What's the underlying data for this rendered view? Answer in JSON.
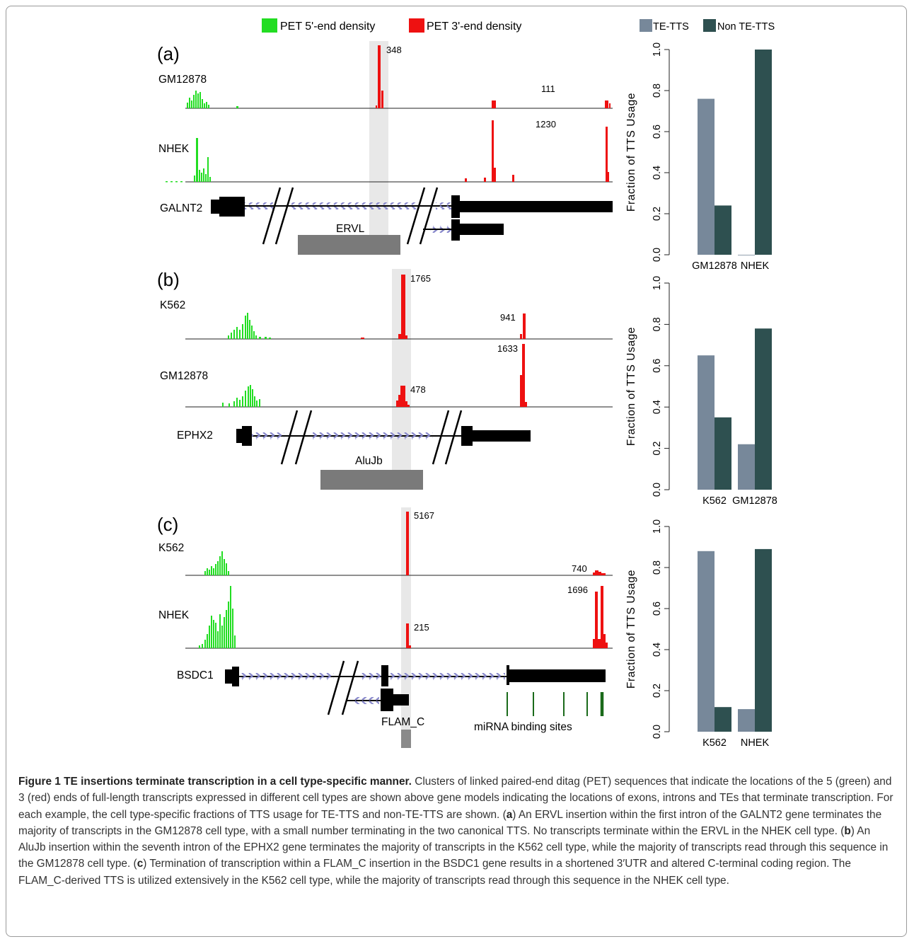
{
  "legend": {
    "pet5": "PET 5'-end density",
    "pet3": "PET 3'-end density",
    "te_tts": "TE-TTS",
    "non_te_tts": "Non TE-TTS"
  },
  "colors": {
    "pet5": "#22dd22",
    "pet3": "#ee1111",
    "te_tts": "#77889a",
    "non_te_tts": "#2e5050",
    "te_box": "#7a7a7a",
    "highlight": "#e8e8e8",
    "arrows": "#8888cc",
    "mirna": "#1a6a1a"
  },
  "panels": [
    {
      "label": "(a)",
      "tracks": [
        {
          "cell": "GM12878",
          "counts": [
            "348",
            "111"
          ]
        },
        {
          "cell": "NHEK",
          "counts": [
            "1230"
          ]
        }
      ],
      "gene": "GALNT2",
      "te": "ERVL"
    },
    {
      "label": "(b)",
      "tracks": [
        {
          "cell": "K562",
          "counts": [
            "1765",
            "941"
          ]
        },
        {
          "cell": "GM12878",
          "counts": [
            "478",
            "1633"
          ]
        }
      ],
      "gene": "EPHX2",
      "te": "AluJb"
    },
    {
      "label": "(c)",
      "tracks": [
        {
          "cell": "K562",
          "counts": [
            "5167",
            "740"
          ]
        },
        {
          "cell": "NHEK",
          "counts": [
            "215",
            "1696"
          ]
        }
      ],
      "gene": "BSDC1",
      "te": "FLAM_C",
      "extra": "miRNA binding sites"
    }
  ],
  "chart_data": [
    {
      "type": "bar",
      "ylabel": "Fraction of TTS Usage",
      "ylim": [
        0,
        1
      ],
      "yticks": [
        "0.0",
        "0.2",
        "0.4",
        "0.6",
        "0.8",
        "1.0"
      ],
      "categories": [
        "GM12878",
        "NHEK"
      ],
      "series": [
        {
          "name": "TE-TTS",
          "values": [
            0.76,
            0.0
          ]
        },
        {
          "name": "Non TE-TTS",
          "values": [
            0.24,
            1.0
          ]
        }
      ]
    },
    {
      "type": "bar",
      "ylabel": "Fraction of TTS Usage",
      "ylim": [
        0,
        1
      ],
      "yticks": [
        "0.0",
        "0.2",
        "0.4",
        "0.6",
        "0.8",
        "1.0"
      ],
      "categories": [
        "K562",
        "GM12878"
      ],
      "series": [
        {
          "name": "TE-TTS",
          "values": [
            0.65,
            0.22
          ]
        },
        {
          "name": "Non TE-TTS",
          "values": [
            0.35,
            0.78
          ]
        }
      ]
    },
    {
      "type": "bar",
      "ylabel": "Fraction of TTS Usage",
      "ylim": [
        0,
        1
      ],
      "yticks": [
        "0.0",
        "0.2",
        "0.4",
        "0.6",
        "0.8",
        "1.0"
      ],
      "categories": [
        "K562",
        "NHEK"
      ],
      "series": [
        {
          "name": "TE-TTS",
          "values": [
            0.88,
            0.11
          ]
        },
        {
          "name": "Non TE-TTS",
          "values": [
            0.12,
            0.89
          ]
        }
      ]
    }
  ],
  "caption": {
    "title": "Figure 1 TE insertions terminate transcription in a cell type-specific manner.",
    "intro": "Clusters of linked paired-end ditag (PET) sequences that indicate the locations of the 5 (green) and 3 (red) ends of full-length transcripts expressed in different cell types are shown above gene models indicating the locations of exons, introns and TEs that terminate transcription. For each example, the cell type-specific fractions of TTS usage for TE-TTS and non-TE-TTS are shown. (",
    "a_letter": "a",
    "a_text": ") An ERVL insertion within the first intron of the GALNT2 gene terminates the majority of transcripts in the GM12878 cell type, with a small number terminating in the two canonical TTS. No transcripts terminate within the ERVL in the NHEK cell type. (",
    "b_letter": "b",
    "b_text": ") An AluJb insertion within the seventh intron of the EPHX2 gene terminates the majority of transcripts in the K562 cell type, while the majority of transcripts read through this sequence in the GM12878 cell type. (",
    "c_letter": "c",
    "c_text": ") Termination of transcription within a FLAM_C insertion in the BSDC1 gene results in a shortened 3′UTR and altered C-terminal coding region. The FLAM_C-derived TTS is utilized extensively in the K562 cell type, while the majority of transcripts read through this sequence in the NHEK cell type."
  }
}
